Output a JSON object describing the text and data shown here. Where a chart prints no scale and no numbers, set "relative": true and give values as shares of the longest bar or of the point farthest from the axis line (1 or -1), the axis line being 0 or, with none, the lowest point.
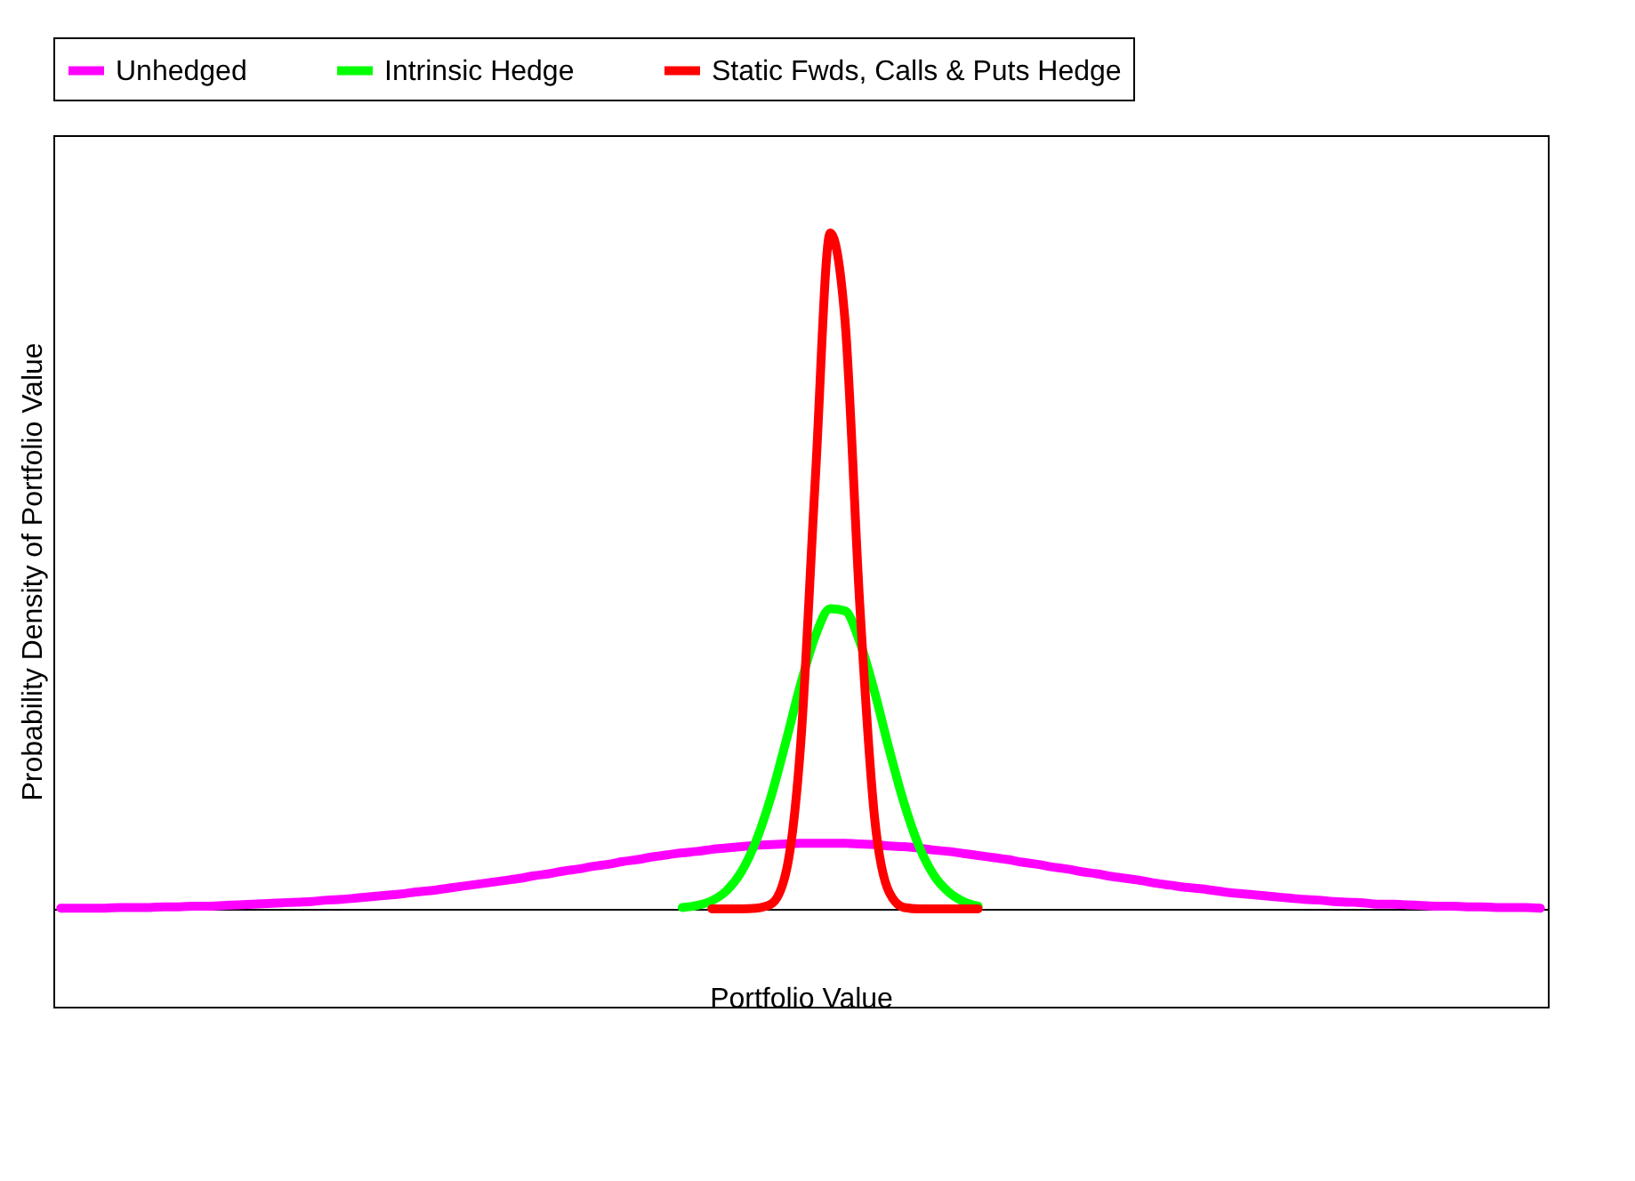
{
  "chart_data": {
    "type": "line",
    "relative": true,
    "xlabel": "Portfolio Value",
    "ylabel": "Probability Density of Portfolio Value",
    "legend": "top",
    "categories": [
      null,
      null,
      null,
      null,
      null,
      null,
      null,
      null,
      null,
      null,
      null,
      null,
      null,
      null,
      null,
      null,
      null,
      null,
      null,
      null,
      null,
      null,
      null,
      null,
      null,
      null,
      null,
      null,
      null,
      null,
      null,
      null,
      null,
      null,
      null,
      null,
      null,
      null,
      null,
      null,
      null,
      null,
      null,
      null,
      null,
      null,
      null,
      null,
      null,
      null,
      null,
      null,
      null,
      null,
      null,
      null,
      null,
      null,
      null,
      null,
      null,
      null,
      null,
      null,
      null,
      null,
      null,
      null,
      null,
      null,
      null,
      null,
      null,
      null,
      null,
      null,
      null,
      null,
      null,
      null,
      null,
      null,
      null,
      null,
      null,
      null,
      null,
      null,
      null,
      null,
      null,
      null,
      null,
      null,
      null,
      null,
      null,
      null,
      null,
      null,
      null
    ],
    "series": [
      {
        "name": "Unhedged",
        "color": "#ff00ff",
        "values": [
          0.001,
          0.001,
          0.001,
          0.001,
          0.002,
          0.002,
          0.002,
          0.003,
          0.003,
          0.004,
          0.004,
          0.005,
          0.006,
          0.007,
          0.008,
          0.009,
          0.01,
          0.011,
          0.013,
          0.014,
          0.016,
          0.018,
          0.02,
          0.022,
          0.025,
          0.027,
          0.03,
          0.033,
          0.036,
          0.039,
          0.042,
          0.045,
          0.049,
          0.052,
          0.056,
          0.059,
          0.063,
          0.066,
          0.07,
          0.073,
          0.077,
          0.08,
          0.083,
          0.085,
          0.088,
          0.09,
          0.092,
          0.094,
          0.095,
          0.096,
          0.097,
          0.097,
          0.097,
          0.097,
          0.096,
          0.095,
          0.093,
          0.092,
          0.09,
          0.087,
          0.085,
          0.082,
          0.079,
          0.076,
          0.073,
          0.069,
          0.066,
          0.062,
          0.059,
          0.055,
          0.052,
          0.048,
          0.045,
          0.042,
          0.038,
          0.035,
          0.032,
          0.03,
          0.027,
          0.024,
          0.022,
          0.02,
          0.018,
          0.016,
          0.014,
          0.013,
          0.011,
          0.01,
          0.009,
          0.007,
          0.007,
          0.006,
          0.005,
          0.004,
          0.004,
          0.003,
          0.003,
          0.002,
          0.002,
          0.002,
          0.001
        ]
      },
      {
        "name": "Intrinsic Hedge",
        "color": "#00ff00",
        "values": [
          null,
          null,
          null,
          null,
          null,
          null,
          null,
          null,
          null,
          null,
          null,
          null,
          null,
          null,
          null,
          null,
          null,
          null,
          null,
          null,
          null,
          null,
          null,
          null,
          null,
          null,
          null,
          null,
          null,
          null,
          null,
          null,
          null,
          null,
          null,
          null,
          null,
          null,
          null,
          null,
          null,
          null,
          0.002,
          0.005,
          0.012,
          0.027,
          0.055,
          0.101,
          0.166,
          0.247,
          0.332,
          0.404,
          0.444,
          0.441,
          0.395,
          0.321,
          0.235,
          0.156,
          0.093,
          0.05,
          0.025,
          0.011,
          0.004,
          null,
          null,
          null,
          null,
          null,
          null,
          null,
          null,
          null,
          null,
          null,
          null,
          null,
          null,
          null,
          null,
          null,
          null,
          null,
          null,
          null,
          null,
          null,
          null,
          null,
          null,
          null,
          null,
          null,
          null,
          null,
          null,
          null,
          null,
          null,
          null,
          null,
          null
        ]
      },
      {
        "name": "Static Fwds, Calls & Puts Hedge",
        "color": "#ff0000",
        "values": [
          null,
          null,
          null,
          null,
          null,
          null,
          null,
          null,
          null,
          null,
          null,
          null,
          null,
          null,
          null,
          null,
          null,
          null,
          null,
          null,
          null,
          null,
          null,
          null,
          null,
          null,
          null,
          null,
          null,
          null,
          null,
          null,
          null,
          null,
          null,
          null,
          null,
          null,
          null,
          null,
          null,
          null,
          null,
          null,
          0,
          0,
          0,
          0.001,
          0.007,
          0.053,
          0.242,
          0.638,
          1,
          0.871,
          0.45,
          0.135,
          0.024,
          0.002,
          0,
          0,
          0,
          0,
          0,
          null,
          null,
          null,
          null,
          null,
          null,
          null,
          null,
          null,
          null,
          null,
          null,
          null,
          null,
          null,
          null,
          null,
          null,
          null,
          null,
          null,
          null,
          null,
          null,
          null,
          null,
          null,
          null,
          null,
          null,
          null,
          null,
          null,
          null,
          null,
          null,
          null,
          null
        ]
      }
    ]
  }
}
